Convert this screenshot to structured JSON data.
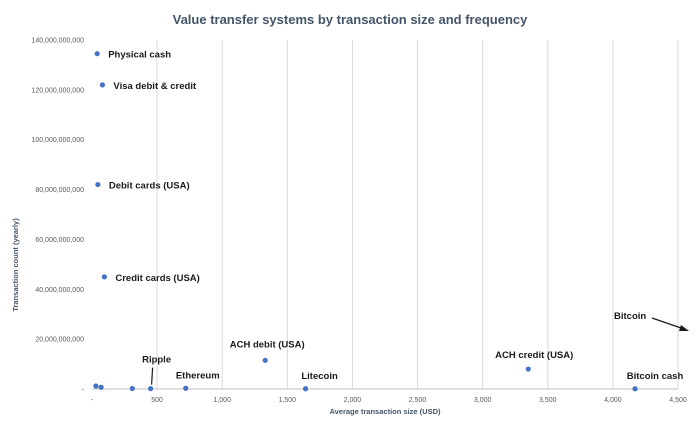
{
  "chart_data": {
    "type": "scatter",
    "title": "Value transfer systems by transaction size and frequency",
    "xlabel": "Average transaction size (USD)",
    "ylabel": "Transaction count (yearly)",
    "xlim": [
      0,
      4500
    ],
    "ylim": [
      0,
      140000000000
    ],
    "x_ticks": [
      0,
      500,
      1000,
      1500,
      2000,
      2500,
      3000,
      3500,
      4000,
      4500
    ],
    "x_tick_labels": [
      "-",
      "500",
      "1,000",
      "1,500",
      "2,000",
      "2,500",
      "3,000",
      "3,500",
      "4,000",
      "4,500"
    ],
    "y_ticks": [
      0,
      20000000000,
      40000000000,
      60000000000,
      80000000000,
      100000000000,
      120000000000,
      140000000000
    ],
    "y_tick_labels": [
      "-",
      "20,000,000,000",
      "40,000,000,000",
      "60,000,000,000",
      "80,000,000,000",
      "100,000,000,000",
      "120,000,000,000",
      "140,000,000,000"
    ],
    "grid": "vertical",
    "legend": "none",
    "point_color": "#4472c4",
    "points": [
      {
        "label": "Physical cash",
        "x": 40,
        "y": 134500000000
      },
      {
        "label": "Visa debit & credit",
        "x": 80,
        "y": 122000000000
      },
      {
        "label": "Debit cards (USA)",
        "x": 45,
        "y": 82000000000
      },
      {
        "label": "Credit cards (USA)",
        "x": 95,
        "y": 45000000000
      },
      {
        "label": "",
        "x": 30,
        "y": 1200000000
      },
      {
        "label": "",
        "x": 70,
        "y": 700000000
      },
      {
        "label": "",
        "x": 310,
        "y": 200000000
      },
      {
        "label": "Ripple",
        "x": 450,
        "y": 150000000
      },
      {
        "label": "Ethereum",
        "x": 720,
        "y": 300000000
      },
      {
        "label": "ACH debit (USA)",
        "x": 1330,
        "y": 11500000000
      },
      {
        "label": "Litecoin",
        "x": 1640,
        "y": 100000000
      },
      {
        "label": "ACH credit (USA)",
        "x": 3350,
        "y": 8000000000
      },
      {
        "label": "Bitcoin cash",
        "x": 4170,
        "y": 100000000
      }
    ],
    "annotations": [
      {
        "text": "Bitcoin",
        "arrow": "off-chart to the right"
      }
    ]
  }
}
